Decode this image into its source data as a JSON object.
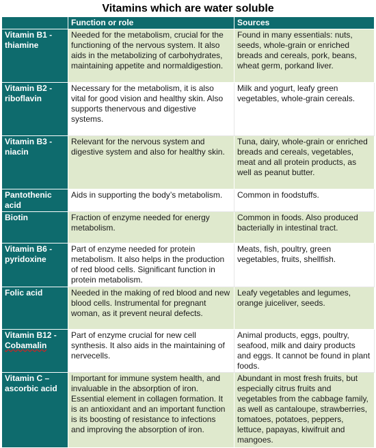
{
  "title": "Vitamins which are water soluble",
  "headers": {
    "blank": "",
    "function": "Function or role",
    "sources": "Sources"
  },
  "rows": [
    {
      "name": "Vitamin B1 - thiamine",
      "function": "Needed for the metabolism, crucial for the functioning of the nervous system. It also aids in the metabolizing of carbohydrates, maintaining appetite and normaldigestion.",
      "sources": "Found in many essentials: nuts, seeds, whole-grain or enriched breads and cereals, pork, beans, wheat germ, porkand liver."
    },
    {
      "name": "Vitamin B2 - riboflavin",
      "function": "Necessary for the metabolism, it is also vital for good vision and healthy skin. Also supports thenervous and digestive systems.",
      "sources": "Milk and yogurt, leafy green vegetables, whole-grain cereals."
    },
    {
      "name": "Vitamin B3 - niacin",
      "function": "Relevant for the nervous system and digestive system and also for healthy skin.",
      "sources": "Tuna, dairy, whole-grain or enriched breads and cereals, vegetables, meat and all protein products, as well as peanut butter."
    },
    {
      "name": "Pantothenic acid",
      "function": "Aids in supporting the body’s metabolism.",
      "sources": "Common in foodstuffs."
    },
    {
      "name": "Biotin",
      "function": "Fraction of enzyme needed for energy metabolism.",
      "sources": "Common in foods. Also produced bacterially in intestinal tract."
    },
    {
      "name": "Vitamin B6 - pyridoxine",
      "function": "Part of enzyme needed for protein metabolism. It also helps in the production of red blood cells. Significant function in protein metabolism.",
      "sources": "Meats, fish, poultry, green vegetables, fruits, shellfish."
    },
    {
      "name": "Folic acid",
      "function": "Needed in the making of red blood and new blood cells. Instrumental for pregnant woman, as it prevent neural defects.",
      "sources": "Leafy vegetables and legumes, orange juiceliver, seeds."
    },
    {
      "name_a": "Vitamin B12 - ",
      "name_b": "Cobamalin",
      "function": "Part of enzyme crucial for new cell synthesis. It also aids in the maintaining of nervecells.",
      "sources": "Animal products, eggs, poultry, seafood, milk and dairy products and eggs. It cannot be found in plant foods."
    },
    {
      "name": "Vitamin C – ascorbic acid",
      "function": "Important for immune system health, and invaluable in the absorption of iron. Essential element in collagen formation. It is an antioxidant and an important function is its boosting of resistance to infections and improving the absorption of iron.",
      "sources": "Abundant in most fresh fruits, but especially citrus fruits and vegetables from the cabbage family, as well as cantaloupe, strawberries, tomatoes, potatoes, peppers, lettuce, papayas, kiwifruit and mangoes."
    }
  ]
}
